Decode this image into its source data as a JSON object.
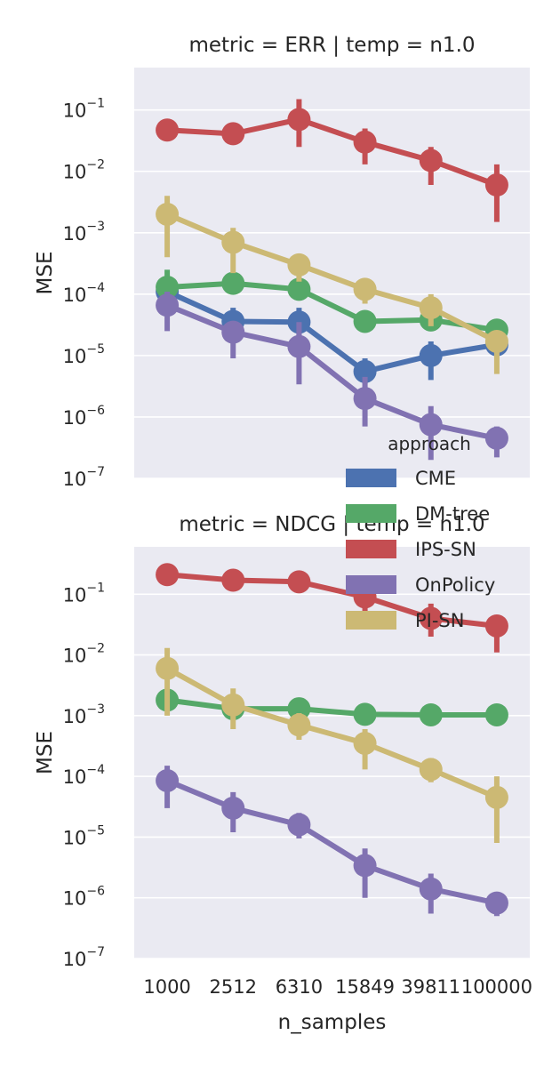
{
  "chart_data": [
    {
      "type": "line",
      "title": "metric = ERR | temp = n1.0",
      "xlabel": "",
      "ylabel": "MSE",
      "yscale": "log",
      "ylim": [
        1e-07,
        0.5
      ],
      "y_ticks": [
        {
          "base": "10",
          "exp": "−7"
        },
        {
          "base": "10",
          "exp": "−6"
        },
        {
          "base": "10",
          "exp": "−5"
        },
        {
          "base": "10",
          "exp": "−4"
        },
        {
          "base": "10",
          "exp": "−3"
        },
        {
          "base": "10",
          "exp": "−2"
        },
        {
          "base": "10",
          "exp": "−1"
        }
      ],
      "grid": true,
      "categories": [
        "1000",
        "2512",
        "6310",
        "15849",
        "39811",
        "100000"
      ],
      "series": [
        {
          "name": "CME",
          "color": "#4c72b0",
          "values": [
            0.00011,
            3.6e-05,
            3.5e-05,
            5.5e-06,
            1e-05,
            1.5e-05
          ],
          "ci_low": [
            6e-05,
            2e-05,
            1.8e-05,
            3.5e-06,
            4e-06,
            1e-05
          ],
          "ci_high": [
            0.00015,
            6e-05,
            6e-05,
            9e-06,
            1.7e-05,
            2.2e-05
          ]
        },
        {
          "name": "DM-tree",
          "color": "#55a868",
          "values": [
            0.00013,
            0.00015,
            0.00012,
            3.6e-05,
            3.8e-05,
            2.6e-05
          ],
          "ci_low": [
            9e-05,
            0.0001,
            9e-05,
            2.8e-05,
            2.8e-05,
            1.8e-05
          ],
          "ci_high": [
            0.00025,
            0.0002,
            0.00016,
            5e-05,
            5e-05,
            3e-05
          ]
        },
        {
          "name": "IPS-SN",
          "color": "#c44e52",
          "values": [
            0.047,
            0.041,
            0.07,
            0.03,
            0.015,
            0.006
          ],
          "ci_low": [
            0.035,
            0.03,
            0.025,
            0.013,
            0.006,
            0.0015
          ],
          "ci_high": [
            0.06,
            0.055,
            0.15,
            0.05,
            0.025,
            0.013
          ]
        },
        {
          "name": "OnPolicy",
          "color": "#8172b2",
          "values": [
            6.6e-05,
            2.4e-05,
            1.4e-05,
            2e-06,
            7.5e-07,
            4.5e-07
          ],
          "ci_low": [
            2.5e-05,
            9e-06,
            3.4e-06,
            7e-07,
            2e-07,
            2.2e-07
          ],
          "ci_high": [
            0.00011,
            3.6e-05,
            3.5e-05,
            4.5e-06,
            1.5e-06,
            7e-07
          ]
        },
        {
          "name": "PI-SN",
          "color": "#ccb974",
          "values": [
            0.002,
            0.0007,
            0.0003,
            0.00012,
            6e-05,
            1.7e-05
          ],
          "ci_low": [
            0.0004,
            0.00022,
            0.00016,
            7e-05,
            3e-05,
            5e-06
          ],
          "ci_high": [
            0.004,
            0.0012,
            0.0004,
            0.00018,
            0.0001,
            2.5e-05
          ]
        }
      ]
    },
    {
      "type": "line",
      "title": "metric = NDCG | temp = n1.0",
      "xlabel": "n_samples",
      "ylabel": "MSE",
      "yscale": "log",
      "ylim": [
        1e-07,
        0.5
      ],
      "y_ticks": [
        {
          "base": "10",
          "exp": "−7"
        },
        {
          "base": "10",
          "exp": "−6"
        },
        {
          "base": "10",
          "exp": "−5"
        },
        {
          "base": "10",
          "exp": "−4"
        },
        {
          "base": "10",
          "exp": "−3"
        },
        {
          "base": "10",
          "exp": "−2"
        },
        {
          "base": "10",
          "exp": "−1"
        }
      ],
      "grid": true,
      "categories": [
        "1000",
        "2512",
        "6310",
        "15849",
        "39811",
        "100000"
      ],
      "series": [
        {
          "name": "DM-tree",
          "color": "#55a868",
          "values": [
            0.0018,
            0.0013,
            0.0013,
            0.00105,
            0.00103,
            0.00103
          ],
          "ci_low": [
            0.0012,
            0.001,
            0.001,
            0.0009,
            0.0009,
            0.0009
          ],
          "ci_high": [
            0.0025,
            0.0017,
            0.0016,
            0.0012,
            0.0012,
            0.0012
          ]
        },
        {
          "name": "IPS-SN",
          "color": "#c44e52",
          "values": [
            0.21,
            0.17,
            0.16,
            0.09,
            0.04,
            0.03
          ],
          "ci_low": [
            0.17,
            0.13,
            0.12,
            0.05,
            0.02,
            0.011
          ],
          "ci_high": [
            0.26,
            0.22,
            0.21,
            0.15,
            0.07,
            0.045
          ]
        },
        {
          "name": "OnPolicy",
          "color": "#8172b2",
          "values": [
            8.5e-05,
            3e-05,
            1.6e-05,
            3.4e-06,
            1.4e-06,
            8.2e-07
          ],
          "ci_low": [
            3e-05,
            1.2e-05,
            9.5e-06,
            1e-06,
            5.5e-07,
            5e-07
          ],
          "ci_high": [
            0.00015,
            5.5e-05,
            2.5e-05,
            6.5e-06,
            2.5e-06,
            1.2e-06
          ]
        },
        {
          "name": "PI-SN",
          "color": "#ccb974",
          "values": [
            0.006,
            0.0015,
            0.0007,
            0.00035,
            0.00013,
            4.5e-05
          ],
          "ci_low": [
            0.001,
            0.0006,
            0.0004,
            0.00013,
            8e-05,
            8e-06
          ],
          "ci_high": [
            0.013,
            0.0028,
            0.0011,
            0.0006,
            0.0002,
            0.0001
          ]
        }
      ]
    }
  ],
  "legend": {
    "title": "approach",
    "placement": "right-middle",
    "entries": [
      {
        "label": "CME",
        "color": "#4c72b0"
      },
      {
        "label": "DM-tree",
        "color": "#55a868"
      },
      {
        "label": "IPS-SN",
        "color": "#c44e52"
      },
      {
        "label": "OnPolicy",
        "color": "#8172b2"
      },
      {
        "label": "PI-SN",
        "color": "#ccb974"
      }
    ]
  }
}
